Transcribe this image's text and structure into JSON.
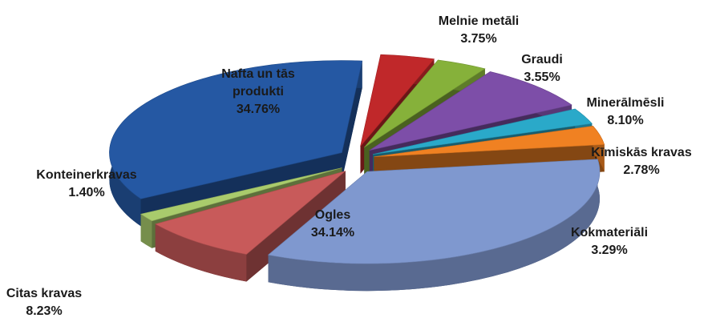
{
  "chart_data": {
    "type": "pie3d",
    "categories": [
      "Melnie metāli",
      "Graudi",
      "Minerālmēsli",
      "Ķīmiskās kravas",
      "Kokmateriāli",
      "Ogles",
      "Citas kravas",
      "Konteinerkravas",
      "Nafta un tās produkti"
    ],
    "values": [
      3.75,
      3.55,
      8.1,
      2.78,
      3.29,
      34.14,
      8.23,
      1.4,
      34.76
    ],
    "value_labels": [
      "3.75%",
      "3.55%",
      "8.10%",
      "2.78%",
      "3.29%",
      "34.14%",
      "8.23%",
      "1.40%",
      "34.76%"
    ],
    "colors": [
      "#c0282a",
      "#86b13a",
      "#7d4ea8",
      "#2aa9c9",
      "#f08122",
      "#7f98cf",
      "#c85a5a",
      "#a9cb6c",
      "#2558a3"
    ]
  }
}
